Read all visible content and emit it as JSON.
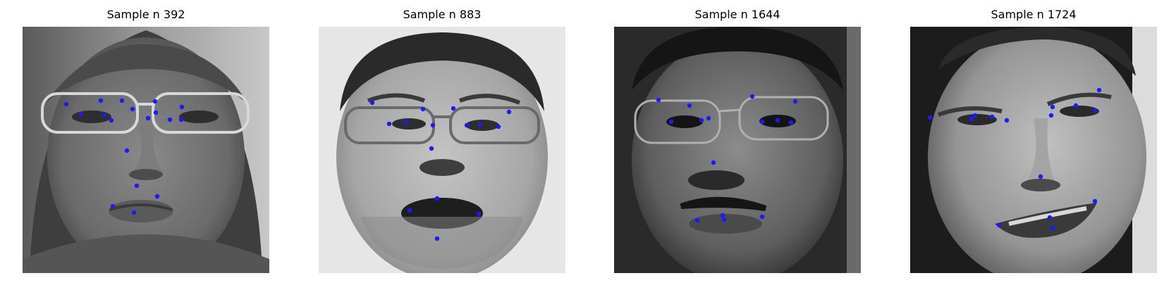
{
  "samples": [
    {
      "title": "Sample n 392",
      "keypoints": [
        [
          62,
          110
        ],
        [
          111,
          105
        ],
        [
          83,
          125
        ],
        [
          116,
          126
        ],
        [
          156,
          117
        ],
        [
          188,
          106
        ],
        [
          141,
          105
        ],
        [
          226,
          114
        ],
        [
          178,
          130
        ],
        [
          189,
          122
        ],
        [
          209,
          132
        ],
        [
          225,
          132
        ],
        [
          126,
          133
        ],
        [
          148,
          176
        ],
        [
          128,
          255
        ],
        [
          191,
          241
        ],
        [
          162,
          226
        ],
        [
          158,
          264
        ]
      ]
    },
    {
      "title": "Sample n 883",
      "keypoints": [
        [
          76,
          108
        ],
        [
          148,
          117
        ],
        [
          100,
          138
        ],
        [
          124,
          136
        ],
        [
          162,
          140
        ],
        [
          191,
          116
        ],
        [
          270,
          121
        ],
        [
          210,
          140
        ],
        [
          229,
          139
        ],
        [
          255,
          142
        ],
        [
          160,
          173
        ],
        [
          129,
          261
        ],
        [
          227,
          266
        ],
        [
          168,
          244
        ],
        [
          168,
          301
        ]
      ]
    },
    {
      "title": "Sample n 1644",
      "keypoints": [
        [
          63,
          104
        ],
        [
          107,
          112
        ],
        [
          81,
          135
        ],
        [
          124,
          133
        ],
        [
          134,
          130
        ],
        [
          196,
          99
        ],
        [
          257,
          106
        ],
        [
          210,
          135
        ],
        [
          232,
          133
        ],
        [
          251,
          136
        ],
        [
          141,
          193
        ],
        [
          118,
          275
        ],
        [
          154,
          268
        ],
        [
          156,
          274
        ],
        [
          210,
          270
        ]
      ]
    },
    {
      "title": "Sample n 1724",
      "keypoints": [
        [
          28,
          129
        ],
        [
          87,
          131
        ],
        [
          92,
          126
        ],
        [
          116,
          128
        ],
        [
          137,
          133
        ],
        [
          202,
          114
        ],
        [
          268,
          90
        ],
        [
          262,
          119
        ],
        [
          235,
          112
        ],
        [
          200,
          126
        ],
        [
          185,
          213
        ],
        [
          126,
          282
        ],
        [
          262,
          248
        ],
        [
          198,
          271
        ],
        [
          202,
          286
        ]
      ]
    }
  ],
  "colors": {
    "keypoint": "#1a1aff",
    "title_text": "#000000"
  }
}
